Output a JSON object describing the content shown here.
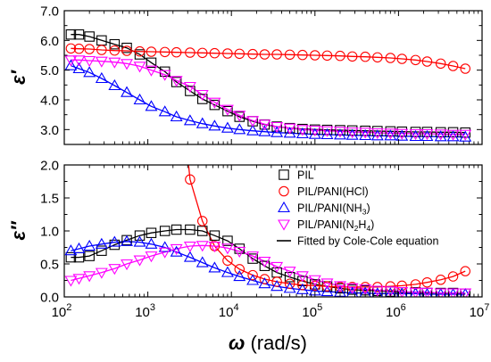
{
  "chart_data": [
    {
      "type": "scatter",
      "panel": "top",
      "ylabel_symbol": "ε",
      "ylabel_prime": "′",
      "xlim": [
        100,
        10000000
      ],
      "ylim": [
        2.5,
        7.0
      ],
      "x_scale": "log",
      "yticks": [
        3.0,
        4.0,
        5.0,
        6.0,
        7.0
      ],
      "ytick_labels": [
        "3.0",
        "4.0",
        "5.0",
        "6.0",
        "7.0"
      ],
      "x": [
        120,
        150,
        200,
        280,
        400,
        560,
        800,
        1100,
        1600,
        2200,
        3200,
        4500,
        6300,
        9000,
        12500,
        18000,
        25000,
        35000,
        50000,
        71000,
        100000,
        140000,
        200000,
        280000,
        400000,
        560000,
        800000,
        1100000,
        1600000,
        2200000,
        3200000,
        4500000,
        6300000
      ],
      "series": [
        {
          "name": "PIL",
          "color": "#000000",
          "marker": "square",
          "values": [
            6.2,
            6.2,
            6.13,
            6.0,
            5.87,
            5.75,
            5.53,
            5.25,
            4.95,
            4.6,
            4.3,
            4.03,
            3.83,
            3.62,
            3.43,
            3.28,
            3.17,
            3.1,
            3.05,
            3.02,
            3.0,
            2.99,
            2.98,
            2.97,
            2.96,
            2.95,
            2.94,
            2.93,
            2.92,
            2.92,
            2.91,
            2.91,
            2.9
          ]
        },
        {
          "name": "PIL/PANI(HCl)",
          "color": "#ff0000",
          "marker": "circle",
          "values": [
            5.73,
            5.72,
            5.71,
            5.68,
            5.66,
            5.65,
            5.63,
            5.62,
            5.61,
            5.6,
            5.59,
            5.58,
            5.57,
            5.56,
            5.55,
            5.54,
            5.53,
            5.53,
            5.52,
            5.51,
            5.5,
            5.49,
            5.48,
            5.46,
            5.45,
            5.43,
            5.41,
            5.38,
            5.34,
            5.29,
            5.22,
            5.14,
            5.05
          ]
        },
        {
          "name": "PIL/PANI(NH3)",
          "color": "#0000ff",
          "marker": "triangle-up",
          "values": [
            5.15,
            5.05,
            4.92,
            4.72,
            4.48,
            4.25,
            4.0,
            3.78,
            3.6,
            3.43,
            3.3,
            3.2,
            3.12,
            3.05,
            3.0,
            2.96,
            2.93,
            2.9,
            2.88,
            2.86,
            2.84,
            2.83,
            2.82,
            2.81,
            2.8,
            2.79,
            2.79,
            2.78,
            2.77,
            2.77,
            2.76,
            2.76,
            2.75
          ]
        },
        {
          "name": "PIL/PANI(N2H4)",
          "color": "#ff00ff",
          "marker": "triangle-down",
          "values": [
            5.34,
            5.34,
            5.32,
            5.3,
            5.27,
            5.22,
            5.13,
            5.0,
            4.85,
            4.65,
            4.45,
            4.18,
            3.92,
            3.68,
            3.48,
            3.3,
            3.18,
            3.1,
            3.05,
            3.0,
            2.98,
            2.96,
            2.94,
            2.92,
            2.91,
            2.89,
            2.88,
            2.87,
            2.86,
            2.86,
            2.85,
            2.84,
            2.84
          ]
        }
      ]
    },
    {
      "type": "scatter",
      "panel": "bottom",
      "ylabel_symbol": "ε",
      "ylabel_prime": "″",
      "xlabel_symbol": "ω",
      "xlabel_unit": " (rad/s)",
      "xlim": [
        100,
        10000000
      ],
      "ylim": [
        0.0,
        2.0
      ],
      "x_scale": "log",
      "yticks": [
        0.0,
        0.5,
        1.0,
        1.5,
        2.0
      ],
      "ytick_labels": [
        "0.0",
        "0.5",
        "1.0",
        "1.5",
        "2.0"
      ],
      "xtick_exponents": [
        "2",
        "3",
        "4",
        "5",
        "6",
        "7"
      ],
      "xtick_base": "10",
      "x": [
        120,
        150,
        200,
        280,
        400,
        560,
        800,
        1100,
        1600,
        2200,
        3200,
        4500,
        6300,
        9000,
        12500,
        18000,
        25000,
        35000,
        50000,
        71000,
        100000,
        140000,
        200000,
        280000,
        400000,
        560000,
        800000,
        1100000,
        1600000,
        2200000,
        3200000,
        4500000,
        6300000
      ],
      "series": [
        {
          "name": "PIL",
          "color": "#000000",
          "marker": "square",
          "values": [
            0.6,
            0.6,
            0.62,
            0.7,
            0.79,
            0.86,
            0.93,
            0.97,
            1.0,
            1.02,
            1.02,
            1.0,
            0.93,
            0.85,
            0.73,
            0.58,
            0.47,
            0.37,
            0.3,
            0.24,
            0.19,
            0.16,
            0.13,
            0.11,
            0.1,
            0.09,
            0.08,
            0.07,
            0.07,
            0.06,
            0.06,
            0.06,
            0.05
          ]
        },
        {
          "name": "PIL/PANI(HCl)",
          "color": "#ff0000",
          "marker": "circle",
          "values": [
            null,
            null,
            null,
            null,
            null,
            null,
            null,
            null,
            null,
            null,
            1.78,
            1.15,
            0.77,
            0.55,
            0.42,
            0.33,
            0.27,
            0.23,
            0.2,
            0.18,
            0.17,
            0.16,
            0.15,
            0.15,
            0.15,
            0.15,
            0.16,
            0.17,
            0.19,
            0.22,
            0.26,
            0.31,
            0.39
          ]
        },
        {
          "name": "PIL/PANI(NH3)",
          "color": "#0000ff",
          "marker": "triangle-up",
          "values": [
            0.7,
            0.73,
            0.77,
            0.8,
            0.83,
            0.84,
            0.83,
            0.8,
            0.75,
            0.68,
            0.6,
            0.52,
            0.44,
            0.37,
            0.31,
            0.25,
            0.2,
            0.16,
            0.13,
            0.11,
            0.09,
            0.08,
            0.07,
            0.06,
            0.06,
            0.05,
            0.05,
            0.05,
            0.05,
            0.04,
            0.04,
            0.04,
            0.04
          ]
        },
        {
          "name": "PIL/PANI(N2H4)",
          "color": "#ff00ff",
          "marker": "triangle-down",
          "values": [
            0.25,
            0.28,
            0.32,
            0.37,
            0.43,
            0.5,
            0.56,
            0.62,
            0.68,
            0.73,
            0.77,
            0.78,
            0.77,
            0.74,
            0.69,
            0.62,
            0.54,
            0.46,
            0.39,
            0.32,
            0.26,
            0.21,
            0.17,
            0.14,
            0.12,
            0.1,
            0.09,
            0.08,
            0.07,
            0.07,
            0.06,
            0.06,
            0.06
          ]
        }
      ],
      "legend": {
        "position": "top-right",
        "entries": [
          {
            "marker": "square",
            "color": "#000000",
            "label": "PIL",
            "sub": "",
            "tail": ""
          },
          {
            "marker": "circle",
            "color": "#ff0000",
            "label": "PIL/PANI(HCl)",
            "sub": "",
            "tail": ""
          },
          {
            "marker": "triangle-up",
            "color": "#0000ff",
            "label": "PIL/PANI(NH",
            "sub": "3",
            "tail": ")"
          },
          {
            "marker": "triangle-down",
            "color": "#ff00ff",
            "label": "PIL/PANI(N",
            "sub": "2",
            "tail": "H"
          },
          {
            "marker": "line",
            "color": "#000000",
            "label": "Fitted by Cole-Cole equation",
            "sub": "",
            "tail": ""
          }
        ],
        "n2h4_tail_sub": "4",
        "n2h4_tail_end": ")"
      }
    }
  ]
}
